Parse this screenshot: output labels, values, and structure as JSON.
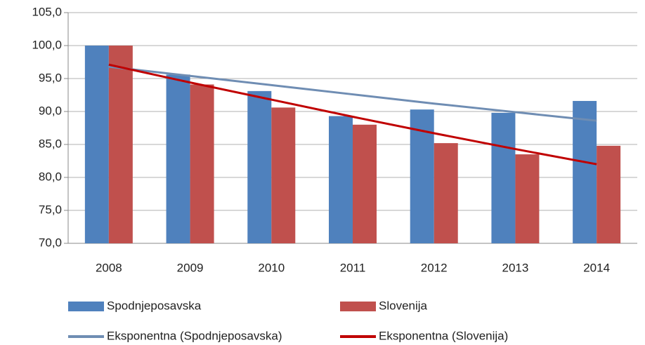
{
  "chart_data": {
    "type": "bar",
    "categories": [
      "2008",
      "2009",
      "2010",
      "2011",
      "2012",
      "2013",
      "2014"
    ],
    "series": [
      {
        "name": "Spodnjeposavska",
        "color": "#4f81bd",
        "values": [
          100.0,
          95.6,
          93.1,
          89.3,
          90.3,
          89.8,
          91.6
        ]
      },
      {
        "name": "Slovenija",
        "color": "#c0504d",
        "values": [
          100.0,
          94.1,
          90.6,
          88.0,
          85.2,
          83.5,
          84.8
        ]
      },
      {
        "name": "Eksponentna (Spodnjeposavska)",
        "type": "line",
        "color": "#6f8db3",
        "values": [
          96.8,
          95.4,
          94.0,
          92.6,
          91.2,
          89.9,
          88.6
        ]
      },
      {
        "name": "Eksponentna (Slovenija)",
        "type": "line",
        "color": "#c00000",
        "values": [
          97.1,
          94.4,
          91.8,
          89.2,
          86.7,
          84.3,
          82.0
        ]
      }
    ],
    "ylim": [
      70,
      105
    ],
    "yticks": [
      {
        "value": 70,
        "label": "70,0"
      },
      {
        "value": 75,
        "label": "75,0"
      },
      {
        "value": 80,
        "label": "80,0"
      },
      {
        "value": 85,
        "label": "85,0"
      },
      {
        "value": 90,
        "label": "90,0"
      },
      {
        "value": 95,
        "label": "95,0"
      },
      {
        "value": 100,
        "label": "100,0"
      },
      {
        "value": 105,
        "label": "105,0"
      }
    ],
    "grid": true,
    "legend": "bottom"
  }
}
